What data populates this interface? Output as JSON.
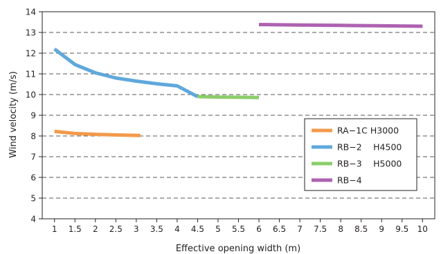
{
  "chart_data": {
    "type": "line",
    "xlabel": "Effective opening width (m)",
    "ylabel": "Wind velocity (m/s)",
    "xlim": [
      0.7,
      10.3
    ],
    "ylim": [
      4,
      14
    ],
    "xticks": [
      1,
      1.5,
      2,
      2.5,
      3,
      3.5,
      4,
      4.5,
      5,
      5.5,
      6,
      6.5,
      7,
      7.5,
      8,
      8.5,
      9,
      9.5,
      10
    ],
    "xtick_labels": [
      "1",
      "1.5",
      "2",
      "2.5",
      "3",
      "3.5",
      "4",
      "4.5",
      "5",
      "5.5",
      "6",
      "6.5",
      "7",
      "7.5",
      "8",
      "8.5",
      "9",
      "9.5",
      "10"
    ],
    "yticks": [
      4,
      5,
      6,
      7,
      8,
      9,
      10,
      11,
      12,
      13,
      14
    ],
    "ytick_labels": [
      "4",
      "5",
      "6",
      "7",
      "8",
      "9",
      "10",
      "11",
      "12",
      "13",
      "14"
    ],
    "grid": "horizontal dashed",
    "legend_position": "right",
    "series": [
      {
        "name": "RA−1C H3000",
        "color": "#f39a4c",
        "points": [
          [
            1,
            8.22
          ],
          [
            1.5,
            8.12
          ],
          [
            2,
            8.08
          ],
          [
            2.5,
            8.05
          ],
          [
            3,
            8.03
          ],
          [
            3.1,
            8.02
          ]
        ]
      },
      {
        "name": "RB−2　 H4500",
        "color": "#5fa8dc",
        "points": [
          [
            1,
            12.2
          ],
          [
            1.5,
            11.45
          ],
          [
            2,
            11.05
          ],
          [
            2.5,
            10.8
          ],
          [
            3,
            10.65
          ],
          [
            3.5,
            10.52
          ],
          [
            4,
            10.42
          ],
          [
            4.5,
            9.9
          ]
        ]
      },
      {
        "name": "RB−3　 H5000",
        "color": "#8ccd6b",
        "points": [
          [
            4.5,
            9.9
          ],
          [
            5,
            9.88
          ],
          [
            5.5,
            9.87
          ],
          [
            6,
            9.86
          ]
        ]
      },
      {
        "name": "RB−4",
        "color": "#ad62b1",
        "points": [
          [
            6,
            13.38
          ],
          [
            7,
            13.36
          ],
          [
            8,
            13.34
          ],
          [
            9,
            13.32
          ],
          [
            10,
            13.3
          ]
        ]
      }
    ]
  }
}
